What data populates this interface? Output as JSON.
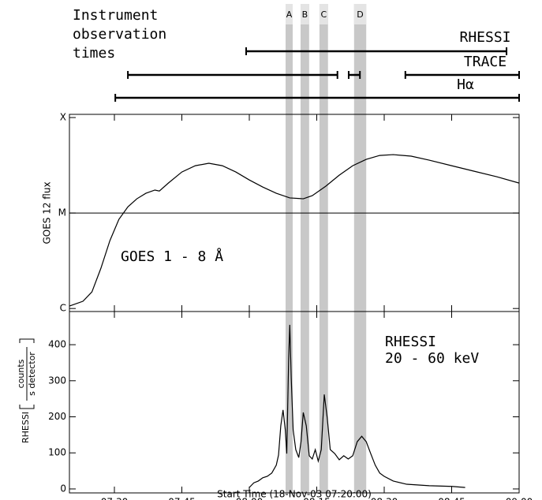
{
  "chart_data": [
    {
      "type": "timeline",
      "title": [
        "Instrument",
        "observation",
        "times"
      ],
      "xlim": [
        0,
        100
      ],
      "band_color": "#c8c8c8",
      "bands": [
        {
          "label": "A",
          "x": [
            48.07,
            49.65
          ]
        },
        {
          "label": "B",
          "x": [
            51.4,
            53.3
          ]
        },
        {
          "label": "C",
          "x": [
            55.6,
            57.5
          ]
        },
        {
          "label": "D",
          "x": [
            63.3,
            66.0
          ]
        }
      ],
      "instruments": [
        {
          "name": "RHESSI",
          "segments": [
            [
              39.3,
              97.2
            ]
          ]
        },
        {
          "name": "TRACE",
          "segments": [
            [
              13.0,
              59.6
            ],
            [
              62.1,
              64.6
            ],
            [
              74.7,
              100
            ]
          ]
        },
        {
          "name": "Hα",
          "segments": [
            [
              10.2,
              100
            ]
          ]
        }
      ]
    },
    {
      "type": "line",
      "ylabel": "GOES 12 flux",
      "annotation": [
        "GOES 1 - 8 Å"
      ],
      "log_y": true,
      "color": "#000000",
      "xlim": [
        0,
        100
      ],
      "ylim": [
        9.3e-07,
        0.000108
      ],
      "yticks": [
        {
          "value": 0.0001,
          "label": "X"
        },
        {
          "value": 1e-05,
          "label": "M"
        },
        {
          "value": 1e-06,
          "label": "C"
        }
      ],
      "reference_line": 1e-05,
      "x": [
        0,
        3,
        5,
        7,
        9,
        11,
        13,
        15,
        17,
        19,
        20,
        22,
        25,
        28,
        31,
        34,
        37,
        40,
        43,
        46,
        49,
        52,
        54,
        57,
        60,
        63,
        66,
        69,
        72,
        76,
        80,
        85,
        90,
        95,
        100
      ],
      "values": [
        1.06e-06,
        1.19e-06,
        1.49e-06,
        2.64e-06,
        5.14e-06,
        8.59e-06,
        1.16e-05,
        1.41e-05,
        1.61e-05,
        1.74e-05,
        1.7e-05,
        2.06e-05,
        2.69e-05,
        3.13e-05,
        3.32e-05,
        3.13e-05,
        2.69e-05,
        2.22e-05,
        1.87e-05,
        1.61e-05,
        1.44e-05,
        1.41e-05,
        1.52e-05,
        1.91e-05,
        2.49e-05,
        3.13e-05,
        3.65e-05,
        4.01e-05,
        4.09e-05,
        3.94e-05,
        3.58e-05,
        3.13e-05,
        2.74e-05,
        2.4e-05,
        2.06e-05
      ]
    },
    {
      "type": "line",
      "ylabel": [
        "RHESSI",
        "counts",
        "s detector"
      ],
      "annotation": [
        "RHESSI",
        "20 - 60 keV"
      ],
      "xlabel": "Start Time (18-Nov-03 07:20:00)",
      "color": "#000000",
      "xlim": [
        0,
        100
      ],
      "xticks": [
        {
          "value": 10,
          "label": "07:30"
        },
        {
          "value": 25,
          "label": "07:45"
        },
        {
          "value": 40,
          "label": "08:00"
        },
        {
          "value": 55,
          "label": "08:15"
        },
        {
          "value": 70,
          "label": "08:30"
        },
        {
          "value": 85,
          "label": "08:45"
        },
        {
          "value": 100,
          "label": "09:00"
        }
      ],
      "ylim": [
        -11,
        492
      ],
      "yticks": [
        0,
        100,
        200,
        300,
        400
      ],
      "x": [
        40,
        41,
        42,
        43,
        44,
        45,
        46,
        46.5,
        47,
        47.5,
        48,
        48.33,
        48.75,
        49,
        49.33,
        49.75,
        50.33,
        51,
        51.5,
        52,
        52.67,
        53.33,
        54,
        54.67,
        55.33,
        56,
        56.67,
        57.33,
        58,
        59,
        60,
        61,
        62,
        63,
        64,
        65,
        66,
        67,
        68,
        69,
        70,
        72,
        75,
        80,
        85,
        88
      ],
      "values": [
        4,
        17,
        22,
        31,
        35,
        44,
        66,
        94,
        175,
        219,
        164,
        98,
        361,
        455,
        306,
        164,
        109,
        87,
        131,
        212,
        175,
        92,
        83,
        109,
        77,
        109,
        262,
        197,
        109,
        98,
        81,
        92,
        83,
        92,
        131,
        146,
        131,
        98,
        66,
        44,
        35,
        22,
        13,
        9,
        7,
        4
      ]
    }
  ]
}
